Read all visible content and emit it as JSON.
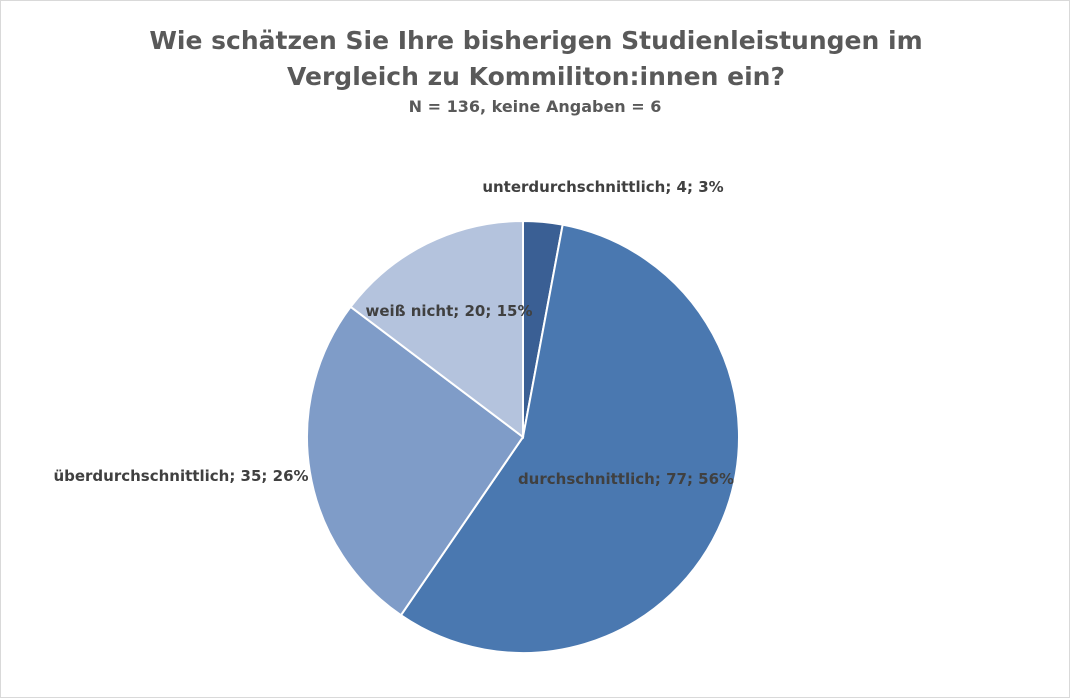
{
  "chart_data": {
    "type": "pie",
    "title": "Wie schätzen Sie Ihre bisherigen Studienleistungen im Vergleich zu Kommiliton:innen ein?",
    "subtitle": "N = 136, keine Angaben = 6",
    "categories": [
      "unterdurchschnittlich",
      "durchschnittlich",
      "überdurchschnittlich",
      "weiß nicht"
    ],
    "values": [
      4,
      77,
      35,
      20
    ],
    "value_labels": [
      "; 4; 3%",
      "; 77; 56%",
      "; 35; 26%",
      "; 20; 15%"
    ],
    "colors": [
      "#3a5f94",
      "#4a78b0",
      "#7f9cc8",
      "#b4c3dd"
    ]
  }
}
